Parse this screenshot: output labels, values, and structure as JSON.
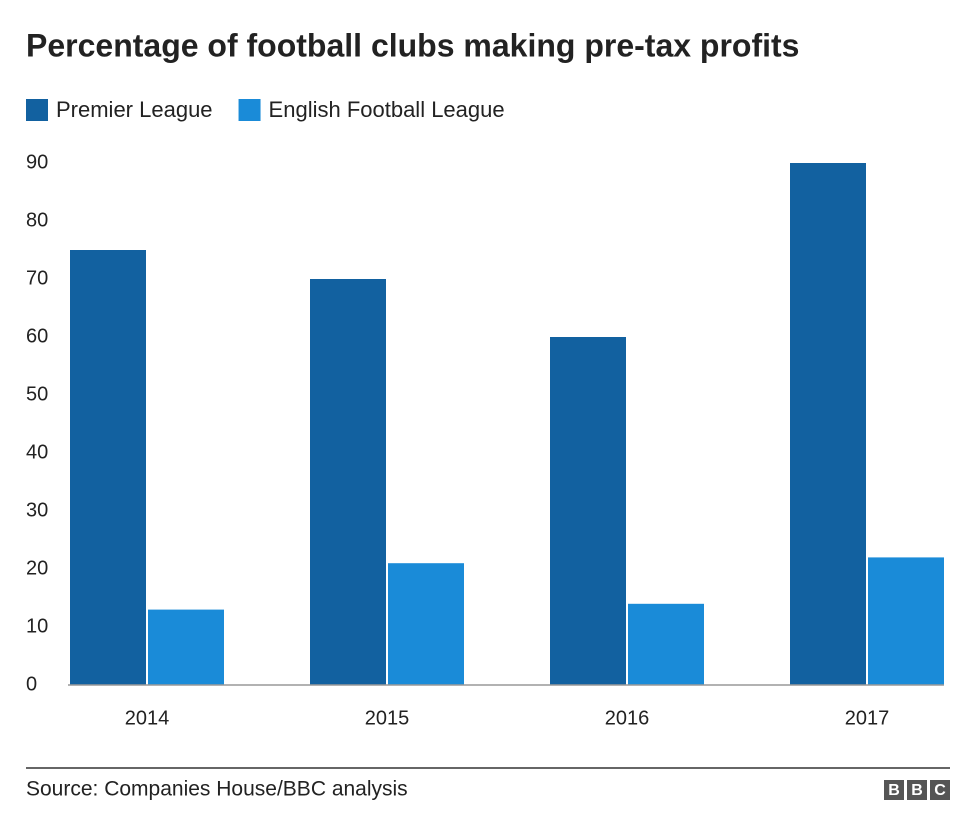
{
  "chart_data": {
    "type": "bar",
    "title": "Percentage of football clubs making pre-tax profits",
    "categories": [
      "2014",
      "2015",
      "2016",
      "2017"
    ],
    "series": [
      {
        "name": "Premier League",
        "color": "#1261a0",
        "values": [
          75,
          70,
          60,
          90
        ]
      },
      {
        "name": "English Football League",
        "color": "#1a8bd8",
        "values": [
          13,
          21,
          14,
          22
        ]
      }
    ],
    "ylim": [
      0,
      90
    ],
    "yticks": [
      0,
      10,
      20,
      30,
      40,
      50,
      60,
      70,
      80,
      90
    ],
    "grid": false,
    "source": "Source: Companies House/BBC analysis",
    "logo": [
      "B",
      "B",
      "C"
    ]
  }
}
